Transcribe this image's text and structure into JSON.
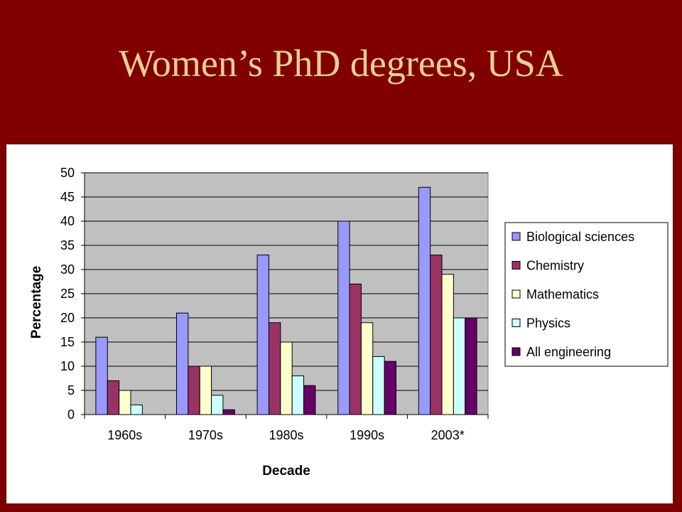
{
  "slide": {
    "title": "Women’s PhD degrees, USA"
  },
  "colors": {
    "background": "#800000",
    "title": "#e8cf95",
    "plot_area": "#c0c0c0",
    "series": [
      "#9999ff",
      "#993366",
      "#ffffcc",
      "#ccffff",
      "#660066"
    ]
  },
  "chart_data": {
    "type": "bar",
    "title": "",
    "xlabel": "Decade",
    "ylabel": "Percentage",
    "ylim": [
      0,
      50
    ],
    "yticks": [
      0,
      5,
      10,
      15,
      20,
      25,
      30,
      35,
      40,
      45,
      50
    ],
    "ytick_labels": [
      "0",
      "5",
      "10",
      "15",
      "20",
      "25",
      "30",
      "35",
      "40",
      "45",
      "50"
    ],
    "grid": true,
    "legend_position": "right",
    "categories": [
      "1960s",
      "1970s",
      "1980s",
      "1990s",
      "2003*"
    ],
    "series": [
      {
        "name": "Biological sciences",
        "values": [
          16,
          21,
          33,
          40,
          47
        ]
      },
      {
        "name": "Chemistry",
        "values": [
          7,
          10,
          19,
          27,
          33
        ]
      },
      {
        "name": "Mathematics",
        "values": [
          5,
          10,
          15,
          19,
          29
        ]
      },
      {
        "name": "Physics",
        "values": [
          2,
          4,
          8,
          12,
          20
        ]
      },
      {
        "name": "All engineering",
        "values": [
          0,
          1,
          6,
          11,
          20
        ]
      }
    ]
  }
}
